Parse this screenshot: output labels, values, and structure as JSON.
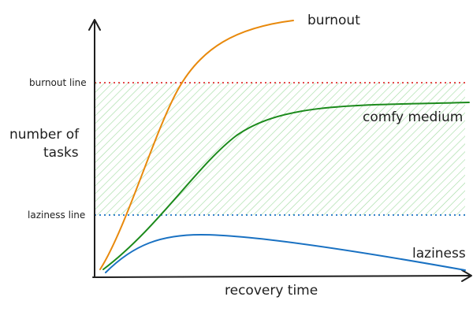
{
  "diagram": {
    "y_axis_label_line1": "number of",
    "y_axis_label_line2": "tasks",
    "x_axis_label": "recovery time",
    "upper_threshold_label": "burnout line",
    "lower_threshold_label": "laziness line",
    "curve_labels": {
      "burnout": "burnout",
      "comfy": "comfy medium",
      "laziness": "laziness"
    }
  },
  "colors": {
    "burnout_curve": "#e8890c",
    "comfy_curve": "#1b8a1b",
    "laziness_curve": "#1971c2",
    "burnout_line": "#e03131",
    "laziness_line": "#1971c2",
    "comfort_zone_hatch": "#8fd48f",
    "axis": "#1e1e1e"
  }
}
